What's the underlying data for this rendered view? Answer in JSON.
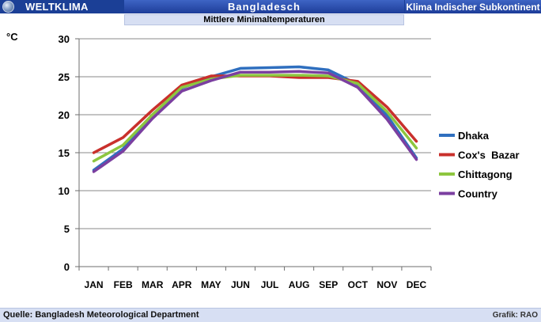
{
  "header": {
    "brand": "WELTKLIMA",
    "country": "Bangladesch",
    "region": "Klima Indischer Subkontinent"
  },
  "subtitle": "Mittlere Minimaltemperaturen",
  "unit_label": "°C",
  "footer": {
    "source": "Quelle: Bangladesh Meteorological Department",
    "credit": "Grafik: RAO"
  },
  "colors": {
    "Dhaka": "#2f6fbf",
    "Cox's Bazar": "#c9302c",
    "Chittagong": "#8dc63f",
    "Country": "#7b3fa0"
  },
  "chart_data": {
    "type": "line",
    "categories": [
      "JAN",
      "FEB",
      "MAR",
      "APR",
      "MAY",
      "JUN",
      "JUL",
      "AUG",
      "SEP",
      "OCT",
      "NOV",
      "DEC"
    ],
    "ylim": [
      0,
      30
    ],
    "yticks": [
      0,
      5,
      10,
      15,
      20,
      25,
      30
    ],
    "grid": true,
    "legend_position": "right",
    "series": [
      {
        "name": "Dhaka",
        "values": [
          12.7,
          15.5,
          20.0,
          23.5,
          25.0,
          26.1,
          26.2,
          26.3,
          25.9,
          24.0,
          19.9,
          14.3
        ]
      },
      {
        "name": "Cox's  Bazar",
        "values": [
          15.0,
          17.0,
          20.6,
          23.9,
          25.1,
          25.1,
          25.1,
          24.9,
          24.9,
          24.4,
          21.0,
          16.5
        ]
      },
      {
        "name": "Chittagong",
        "values": [
          13.9,
          16.0,
          20.0,
          23.6,
          24.7,
          25.2,
          25.2,
          25.2,
          25.1,
          24.1,
          20.4,
          15.6
        ]
      },
      {
        "name": "Country",
        "values": [
          12.5,
          15.2,
          19.5,
          23.1,
          24.5,
          25.6,
          25.6,
          25.7,
          25.5,
          23.6,
          19.4,
          14.1
        ]
      }
    ]
  }
}
